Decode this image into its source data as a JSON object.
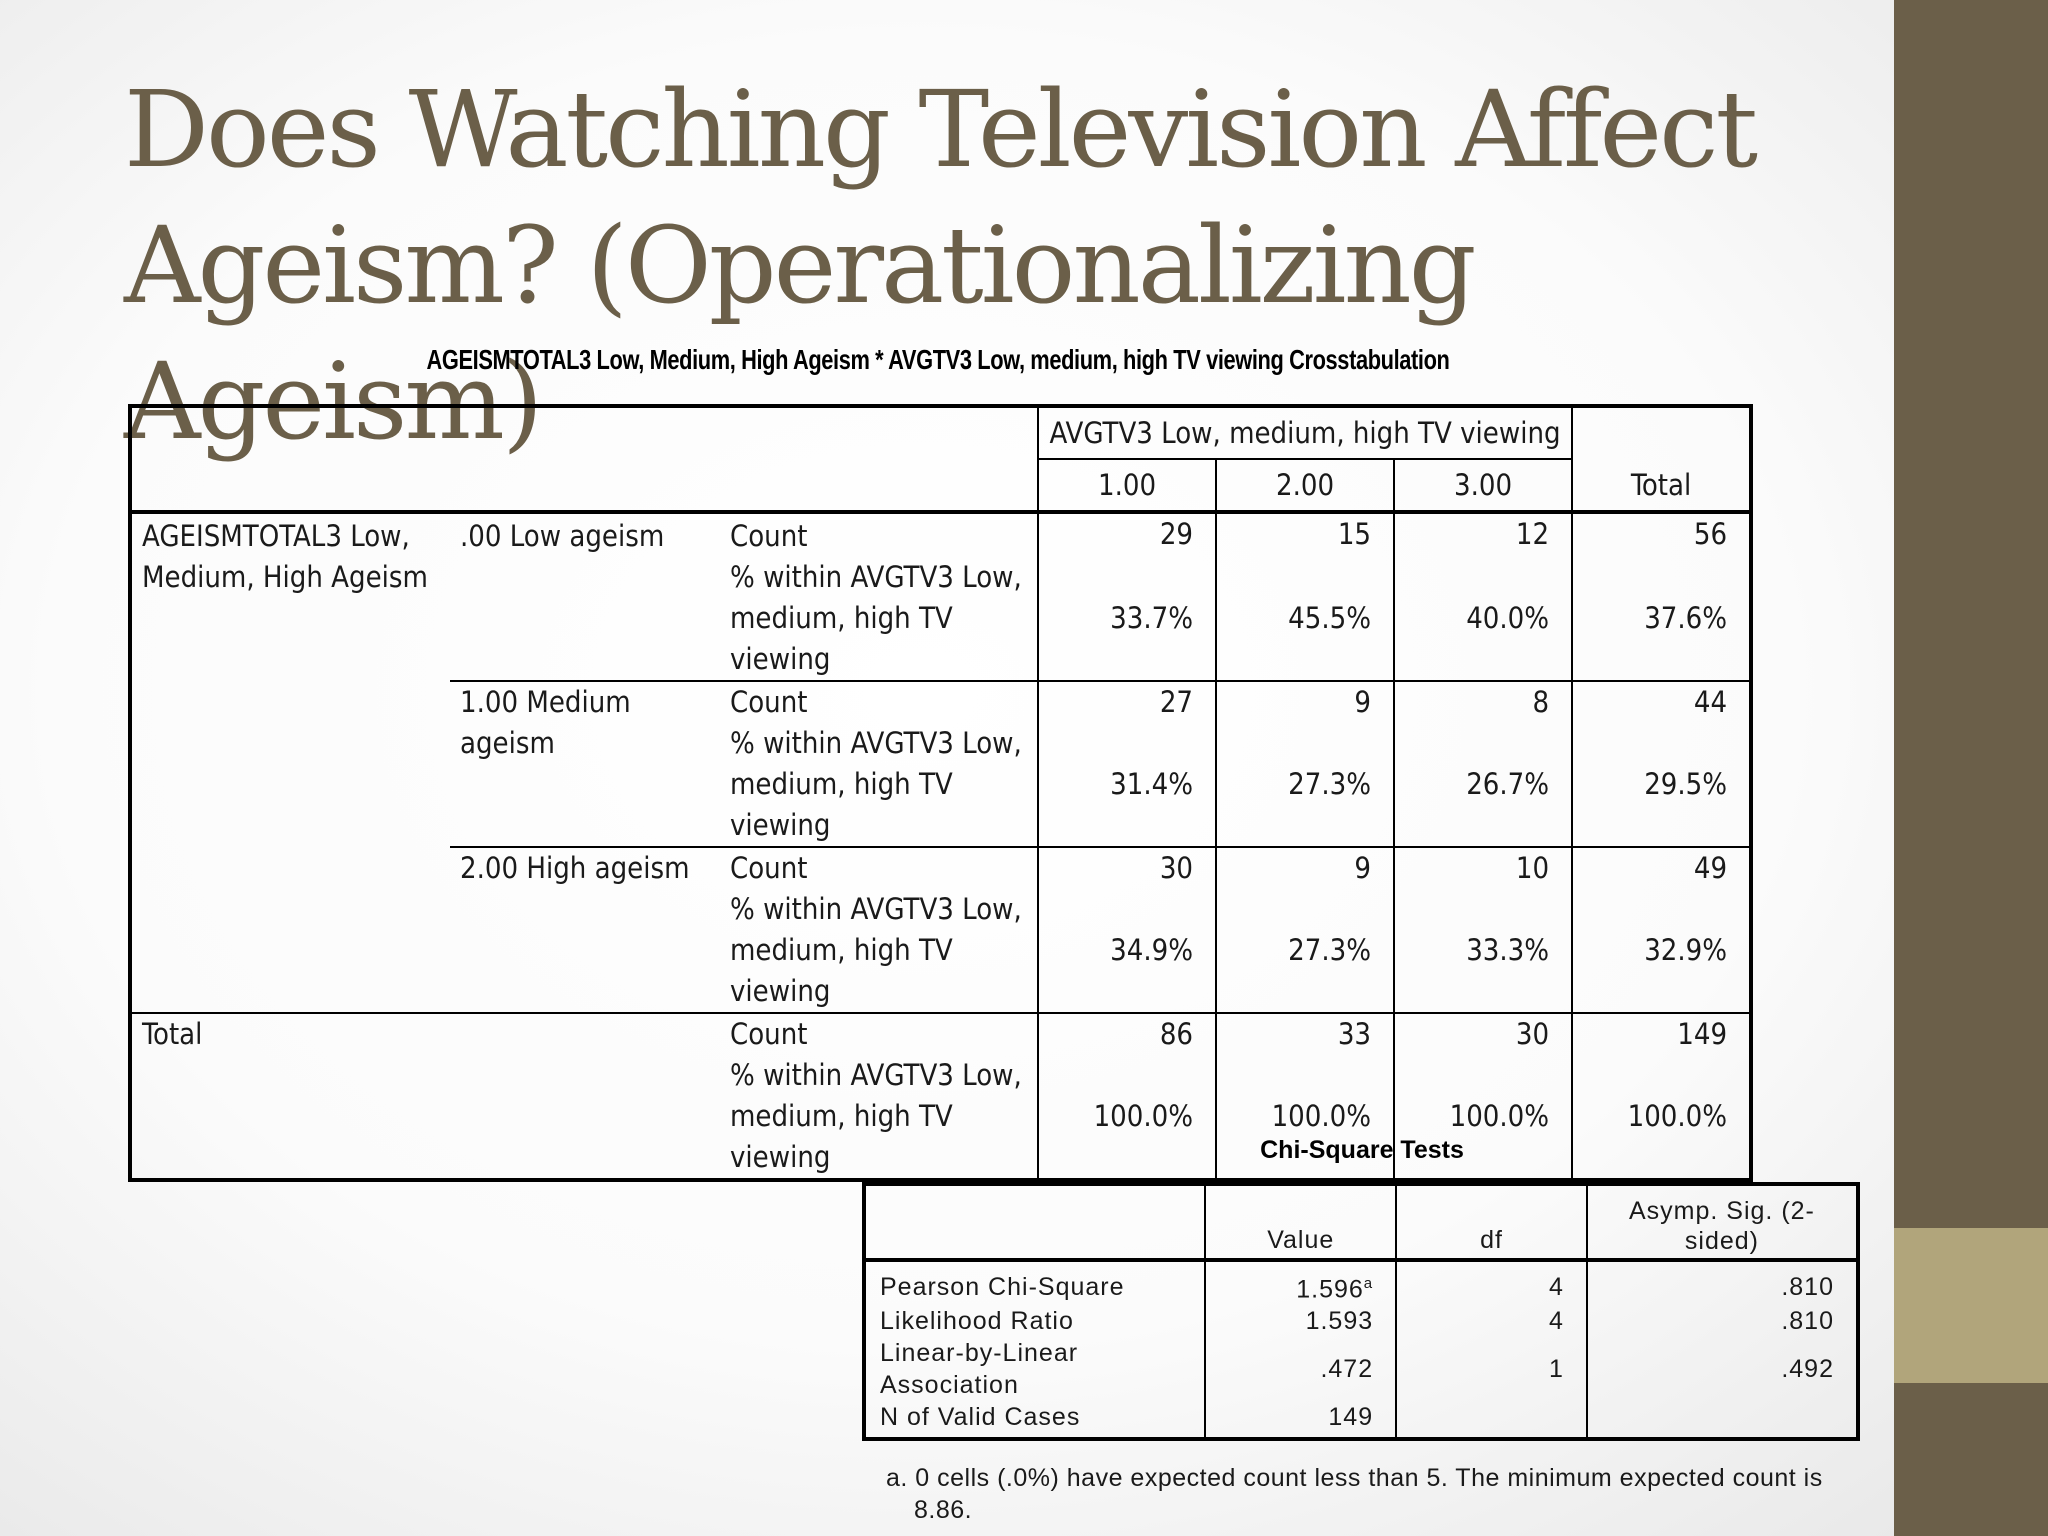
{
  "slide": {
    "title_line1": "Does Watching Television Affect",
    "title_line2": "Ageism? (Operationalizing Ageism)",
    "colors": {
      "title": "#6b5f49",
      "sidebar": "#6b5f49",
      "sidebar_accent": "#b1a57b"
    }
  },
  "crosstab": {
    "caption": "AGEISMTOTAL3 Low, Medium, High Ageism * AVGTV3 Low, medium, high TV viewing Crosstabulation",
    "col_group_label": "AVGTV3 Low, medium, high TV viewing",
    "columns": [
      "1.00",
      "2.00",
      "3.00"
    ],
    "total_label": "Total",
    "row_var_label": "AGEISMTOTAL3 Low, Medium, High Ageism",
    "count_label": "Count",
    "pct_label": "% within AVGTV3 Low, medium, high TV viewing",
    "groups": [
      {
        "label": ".00 Low ageism",
        "count": [
          "29",
          "15",
          "12",
          "56"
        ],
        "pct": [
          "33.7%",
          "45.5%",
          "40.0%",
          "37.6%"
        ]
      },
      {
        "label": "1.00 Medium ageism",
        "count": [
          "27",
          "9",
          "8",
          "44"
        ],
        "pct": [
          "31.4%",
          "27.3%",
          "26.7%",
          "29.5%"
        ]
      },
      {
        "label": "2.00 High ageism",
        "count": [
          "30",
          "9",
          "10",
          "49"
        ],
        "pct": [
          "34.9%",
          "27.3%",
          "33.3%",
          "32.9%"
        ]
      }
    ],
    "total_row": {
      "label": "Total",
      "count": [
        "86",
        "33",
        "30",
        "149"
      ],
      "pct": [
        "100.0%",
        "100.0%",
        "100.0%",
        "100.0%"
      ]
    }
  },
  "chisq": {
    "caption": "Chi-Square Tests",
    "headers": {
      "value": "Value",
      "df": "df",
      "sig": "Asymp. Sig. (2-sided)"
    },
    "rows": [
      {
        "label": "Pearson Chi-Square",
        "value": "1.596",
        "sup": "a",
        "df": "4",
        "sig": ".810"
      },
      {
        "label": "Likelihood Ratio",
        "value": "1.593",
        "sup": "",
        "df": "4",
        "sig": ".810"
      },
      {
        "label": "Linear-by-Linear Association",
        "value": ".472",
        "sup": "",
        "df": "1",
        "sig": ".492"
      },
      {
        "label": "N of Valid Cases",
        "value": "149",
        "sup": "",
        "df": "",
        "sig": ""
      }
    ],
    "footnote": "a. 0 cells (.0%) have expected count less than 5. The minimum expected count is 8.86."
  }
}
